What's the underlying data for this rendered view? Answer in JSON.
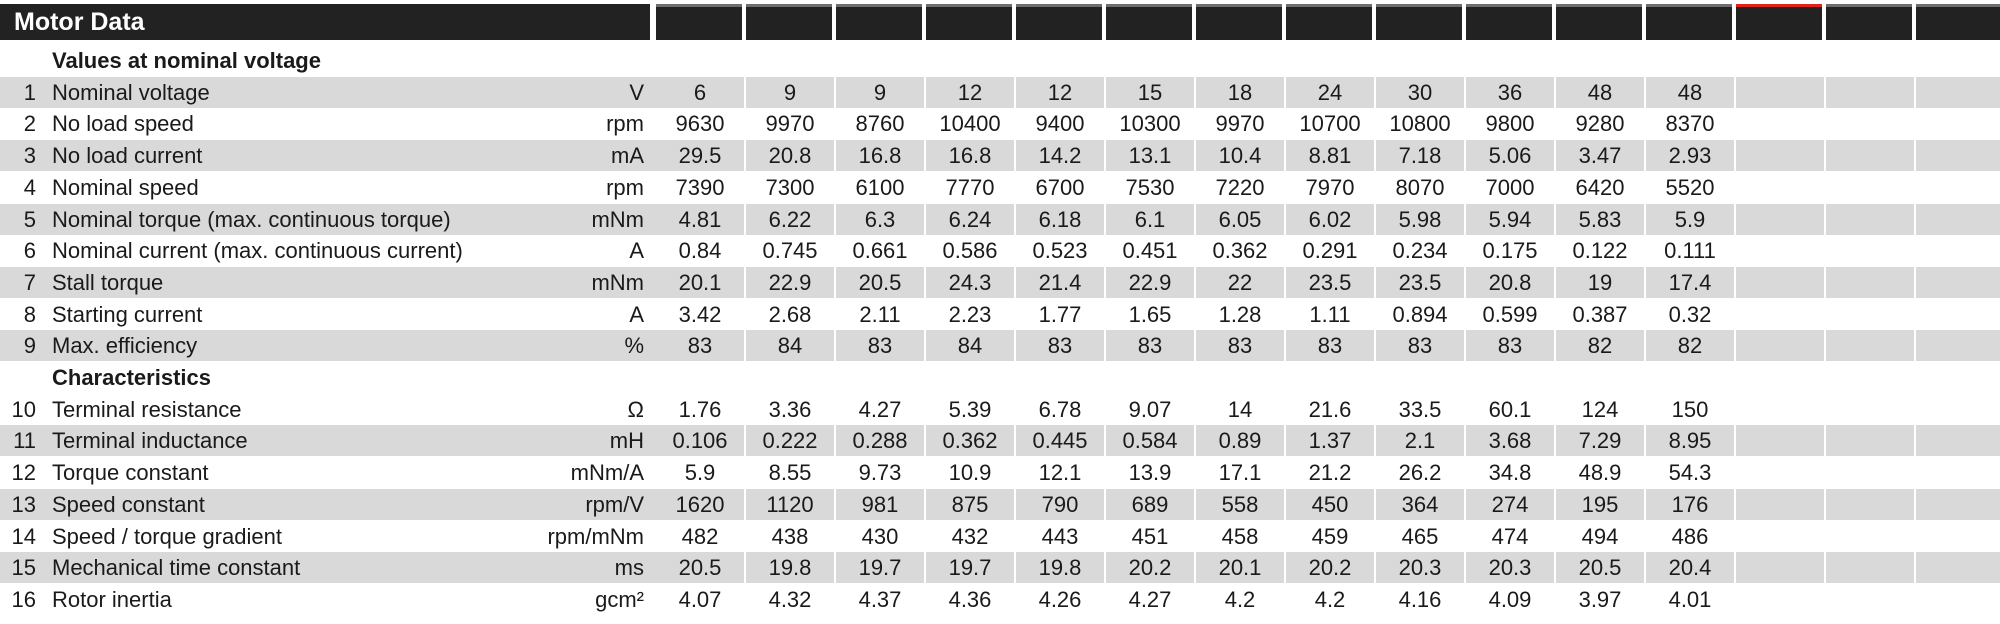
{
  "title": "Motor Data",
  "sections": [
    {
      "title": "Values at nominal voltage",
      "rows": [
        {
          "num": "1",
          "label": "Nominal voltage",
          "unit": "V",
          "values": [
            "6",
            "9",
            "9",
            "12",
            "12",
            "15",
            "18",
            "24",
            "30",
            "36",
            "48",
            "48"
          ]
        },
        {
          "num": "2",
          "label": "No load speed",
          "unit": "rpm",
          "values": [
            "9630",
            "9970",
            "8760",
            "10400",
            "9400",
            "10300",
            "9970",
            "10700",
            "10800",
            "9800",
            "9280",
            "8370"
          ]
        },
        {
          "num": "3",
          "label": "No load current",
          "unit": "mA",
          "values": [
            "29.5",
            "20.8",
            "16.8",
            "16.8",
            "14.2",
            "13.1",
            "10.4",
            "8.81",
            "7.18",
            "5.06",
            "3.47",
            "2.93"
          ]
        },
        {
          "num": "4",
          "label": "Nominal speed",
          "unit": "rpm",
          "values": [
            "7390",
            "7300",
            "6100",
            "7770",
            "6700",
            "7530",
            "7220",
            "7970",
            "8070",
            "7000",
            "6420",
            "5520"
          ]
        },
        {
          "num": "5",
          "label": "Nominal torque (max. continuous torque)",
          "unit": "mNm",
          "values": [
            "4.81",
            "6.22",
            "6.3",
            "6.24",
            "6.18",
            "6.1",
            "6.05",
            "6.02",
            "5.98",
            "5.94",
            "5.83",
            "5.9"
          ]
        },
        {
          "num": "6",
          "label": "Nominal current (max. continuous current)",
          "unit": "A",
          "values": [
            "0.84",
            "0.745",
            "0.661",
            "0.586",
            "0.523",
            "0.451",
            "0.362",
            "0.291",
            "0.234",
            "0.175",
            "0.122",
            "0.111"
          ]
        },
        {
          "num": "7",
          "label": "Stall torque",
          "unit": "mNm",
          "values": [
            "20.1",
            "22.9",
            "20.5",
            "24.3",
            "21.4",
            "22.9",
            "22",
            "23.5",
            "23.5",
            "20.8",
            "19",
            "17.4"
          ]
        },
        {
          "num": "8",
          "label": "Starting current",
          "unit": "A",
          "values": [
            "3.42",
            "2.68",
            "2.11",
            "2.23",
            "1.77",
            "1.65",
            "1.28",
            "1.11",
            "0.894",
            "0.599",
            "0.387",
            "0.32"
          ]
        },
        {
          "num": "9",
          "label": "Max. efficiency",
          "unit": "%",
          "values": [
            "83",
            "84",
            "83",
            "84",
            "83",
            "83",
            "83",
            "83",
            "83",
            "83",
            "82",
            "82"
          ]
        }
      ]
    },
    {
      "title": "Characteristics",
      "rows": [
        {
          "num": "10",
          "label": "Terminal resistance",
          "unit": "Ω",
          "values": [
            "1.76",
            "3.36",
            "4.27",
            "5.39",
            "6.78",
            "9.07",
            "14",
            "21.6",
            "33.5",
            "60.1",
            "124",
            "150"
          ]
        },
        {
          "num": "11",
          "label": "Terminal inductance",
          "unit": "mH",
          "values": [
            "0.106",
            "0.222",
            "0.288",
            "0.362",
            "0.445",
            "0.584",
            "0.89",
            "1.37",
            "2.1",
            "3.68",
            "7.29",
            "8.95"
          ]
        },
        {
          "num": "12",
          "label": "Torque constant",
          "unit": "mNm/A",
          "values": [
            "5.9",
            "8.55",
            "9.73",
            "10.9",
            "12.1",
            "13.9",
            "17.1",
            "21.2",
            "26.2",
            "34.8",
            "48.9",
            "54.3"
          ]
        },
        {
          "num": "13",
          "label": "Speed constant",
          "unit": "rpm/V",
          "values": [
            "1620",
            "1120",
            "981",
            "875",
            "790",
            "689",
            "558",
            "450",
            "364",
            "274",
            "195",
            "176"
          ]
        },
        {
          "num": "14",
          "label": "Speed / torque gradient",
          "unit": "rpm/mNm",
          "values": [
            "482",
            "438",
            "430",
            "432",
            "443",
            "451",
            "458",
            "459",
            "465",
            "474",
            "494",
            "486"
          ]
        },
        {
          "num": "15",
          "label": "Mechanical time constant",
          "unit": "ms",
          "values": [
            "20.5",
            "19.8",
            "19.7",
            "19.7",
            "19.8",
            "20.2",
            "20.1",
            "20.2",
            "20.3",
            "20.3",
            "20.5",
            "20.4"
          ]
        },
        {
          "num": "16",
          "label": "Rotor inertia",
          "unit": "gcm²",
          "values": [
            "4.07",
            "4.32",
            "4.37",
            "4.36",
            "4.26",
            "4.27",
            "4.2",
            "4.2",
            "4.16",
            "4.09",
            "3.97",
            "4.01"
          ]
        }
      ]
    }
  ],
  "column_count": 15,
  "accent_color": "#e0231b"
}
